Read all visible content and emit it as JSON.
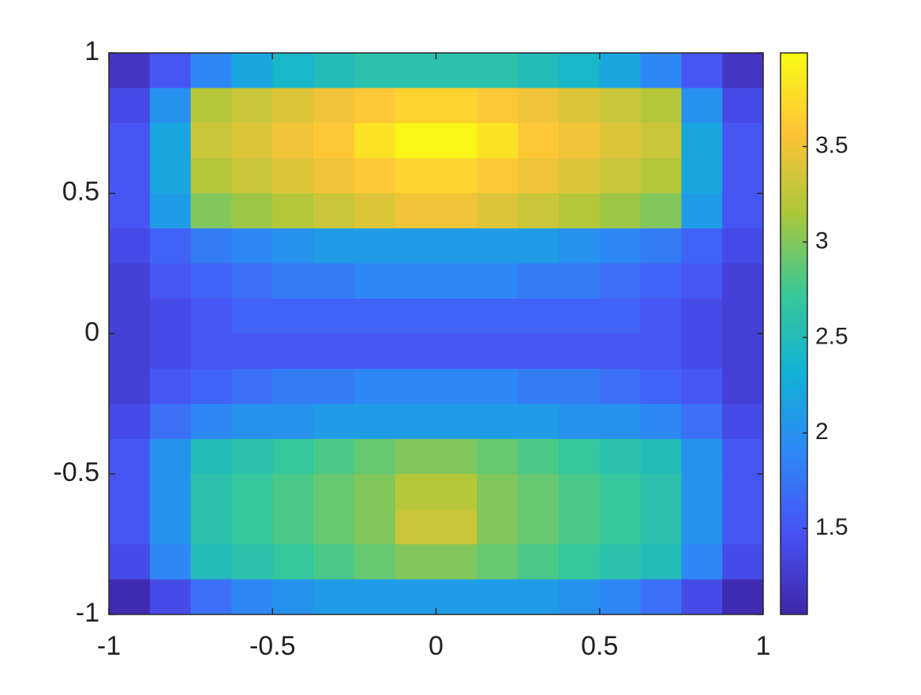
{
  "chart_data": {
    "type": "heatmap",
    "x": [
      -0.9375,
      -0.8125,
      -0.6875,
      -0.5625,
      -0.4375,
      -0.3125,
      -0.1875,
      -0.0625,
      0.0625,
      0.1875,
      0.3125,
      0.4375,
      0.5625,
      0.6875,
      0.8125,
      0.9375
    ],
    "y": [
      0.9375,
      0.8125,
      0.6875,
      0.5625,
      0.4375,
      0.3125,
      0.1875,
      0.0625,
      -0.0625,
      -0.1875,
      -0.3125,
      -0.4375,
      -0.5625,
      -0.6875,
      -0.8125,
      -0.9375
    ],
    "z": [
      [
        1.2,
        1.5,
        1.9,
        2.2,
        2.4,
        2.5,
        2.6,
        2.6,
        2.6,
        2.6,
        2.5,
        2.4,
        2.2,
        1.9,
        1.5,
        1.2
      ],
      [
        1.4,
        2.0,
        3.2,
        3.3,
        3.4,
        3.5,
        3.6,
        3.7,
        3.7,
        3.6,
        3.5,
        3.4,
        3.3,
        3.2,
        2.0,
        1.4
      ],
      [
        1.5,
        2.2,
        3.3,
        3.4,
        3.5,
        3.6,
        3.8,
        3.95,
        3.95,
        3.8,
        3.6,
        3.5,
        3.4,
        3.3,
        2.2,
        1.5
      ],
      [
        1.5,
        2.2,
        3.2,
        3.3,
        3.4,
        3.5,
        3.6,
        3.7,
        3.7,
        3.6,
        3.5,
        3.4,
        3.3,
        3.2,
        2.2,
        1.5
      ],
      [
        1.5,
        2.1,
        3.0,
        3.1,
        3.2,
        3.3,
        3.4,
        3.5,
        3.5,
        3.4,
        3.3,
        3.2,
        3.1,
        3.0,
        2.1,
        1.5
      ],
      [
        1.4,
        1.6,
        1.8,
        1.9,
        2.0,
        2.1,
        2.1,
        2.1,
        2.1,
        2.1,
        2.1,
        2.0,
        1.9,
        1.8,
        1.6,
        1.4
      ],
      [
        1.3,
        1.5,
        1.6,
        1.7,
        1.8,
        1.8,
        1.9,
        1.9,
        1.9,
        1.9,
        1.8,
        1.8,
        1.7,
        1.6,
        1.5,
        1.3
      ],
      [
        1.3,
        1.4,
        1.5,
        1.6,
        1.6,
        1.6,
        1.6,
        1.6,
        1.6,
        1.6,
        1.6,
        1.6,
        1.6,
        1.5,
        1.4,
        1.3
      ],
      [
        1.3,
        1.4,
        1.5,
        1.5,
        1.5,
        1.5,
        1.5,
        1.5,
        1.5,
        1.5,
        1.5,
        1.5,
        1.5,
        1.5,
        1.4,
        1.3
      ],
      [
        1.3,
        1.5,
        1.6,
        1.7,
        1.8,
        1.8,
        1.9,
        1.9,
        1.9,
        1.9,
        1.8,
        1.8,
        1.7,
        1.6,
        1.5,
        1.3
      ],
      [
        1.4,
        1.7,
        1.9,
        2.0,
        2.0,
        2.1,
        2.1,
        2.1,
        2.1,
        2.1,
        2.1,
        2.0,
        2.0,
        1.9,
        1.7,
        1.4
      ],
      [
        1.5,
        2.0,
        2.5,
        2.6,
        2.7,
        2.8,
        2.9,
        3.0,
        3.0,
        2.9,
        2.8,
        2.7,
        2.6,
        2.5,
        2.0,
        1.5
      ],
      [
        1.5,
        2.0,
        2.6,
        2.7,
        2.8,
        2.9,
        3.0,
        3.2,
        3.2,
        3.0,
        2.9,
        2.8,
        2.7,
        2.6,
        2.0,
        1.5
      ],
      [
        1.5,
        2.0,
        2.6,
        2.7,
        2.8,
        2.9,
        3.0,
        3.3,
        3.3,
        3.0,
        2.9,
        2.8,
        2.7,
        2.6,
        2.0,
        1.5
      ],
      [
        1.4,
        1.9,
        2.5,
        2.6,
        2.7,
        2.8,
        2.9,
        3.0,
        3.0,
        2.9,
        2.8,
        2.7,
        2.6,
        2.5,
        1.9,
        1.4
      ],
      [
        1.1,
        1.4,
        1.7,
        1.9,
        2.0,
        2.1,
        2.1,
        2.1,
        2.1,
        2.1,
        2.1,
        2.0,
        1.9,
        1.7,
        1.4,
        1.1
      ]
    ],
    "xlim": [
      -1,
      1
    ],
    "ylim": [
      -1,
      1
    ],
    "xticks": [
      -1,
      -0.5,
      0,
      0.5,
      1
    ],
    "yticks": [
      -1,
      -0.5,
      0,
      0.5,
      1
    ],
    "clim": [
      1.05,
      3.99
    ],
    "cticks": [
      1.5,
      2,
      2.5,
      3,
      3.5
    ],
    "colormap": [
      "#3e26a8",
      "#4852f4",
      "#2e87f7",
      "#12b1d6",
      "#37c897",
      "#abc739",
      "#fec338",
      "#f9fb15"
    ]
  }
}
